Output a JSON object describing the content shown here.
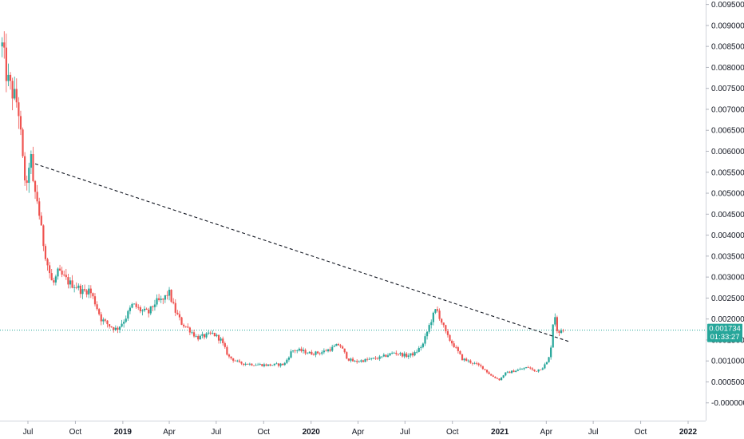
{
  "chart_data": {
    "type": "candlestick",
    "title": "",
    "xlabel": "",
    "ylabel": "",
    "ylim": [
      -0.0001,
      0.00955
    ],
    "y_ticks": [
      "0.009500",
      "0.009000",
      "0.008500",
      "0.008000",
      "0.007500",
      "0.007000",
      "0.006500",
      "0.006000",
      "0.005500",
      "0.005000",
      "0.004500",
      "0.004000",
      "0.003500",
      "0.003000",
      "0.002500",
      "0.002000",
      "0.001500",
      "0.001000",
      "0.000500",
      "-0.000000"
    ],
    "x_ticks": [
      {
        "label": "Jul",
        "date": "2018-07-01",
        "bold": false
      },
      {
        "label": "Oct",
        "date": "2018-10-01",
        "bold": false
      },
      {
        "label": "2019",
        "date": "2019-01-01",
        "bold": true
      },
      {
        "label": "Apr",
        "date": "2019-04-01",
        "bold": false
      },
      {
        "label": "Jul",
        "date": "2019-07-01",
        "bold": false
      },
      {
        "label": "Oct",
        "date": "2019-10-01",
        "bold": false
      },
      {
        "label": "2020",
        "date": "2020-01-01",
        "bold": true
      },
      {
        "label": "Apr",
        "date": "2020-04-01",
        "bold": false
      },
      {
        "label": "Jul",
        "date": "2020-07-01",
        "bold": false
      },
      {
        "label": "Oct",
        "date": "2020-10-01",
        "bold": false
      },
      {
        "label": "2021",
        "date": "2021-01-01",
        "bold": true
      },
      {
        "label": "Apr",
        "date": "2021-04-01",
        "bold": false
      },
      {
        "label": "Jul",
        "date": "2021-07-01",
        "bold": false
      },
      {
        "label": "Oct",
        "date": "2021-10-01",
        "bold": false
      },
      {
        "label": "2022",
        "date": "2022-01-01",
        "bold": true
      }
    ],
    "series": [
      {
        "points": [
          [
            "2018-05-12",
            0.0085
          ],
          [
            "2018-05-22",
            0.0077
          ],
          [
            "2018-06-01",
            0.0074
          ],
          [
            "2018-06-12",
            0.0071
          ],
          [
            "2018-06-22",
            0.0056
          ],
          [
            "2018-06-30",
            0.005
          ],
          [
            "2018-07-05",
            0.0062
          ],
          [
            "2018-07-10",
            0.0052
          ],
          [
            "2018-07-20",
            0.0048
          ],
          [
            "2018-07-28",
            0.004
          ],
          [
            "2018-08-08",
            0.0033
          ],
          [
            "2018-08-18",
            0.0028
          ],
          [
            "2018-08-28",
            0.0031
          ],
          [
            "2018-09-08",
            0.003
          ],
          [
            "2018-09-20",
            0.00285
          ],
          [
            "2018-10-01",
            0.0028
          ],
          [
            "2018-10-15",
            0.00265
          ],
          [
            "2018-10-28",
            0.0027
          ],
          [
            "2018-11-08",
            0.0024
          ],
          [
            "2018-11-20",
            0.002
          ],
          [
            "2018-12-05",
            0.00185
          ],
          [
            "2018-12-20",
            0.00175
          ],
          [
            "2019-01-05",
            0.002
          ],
          [
            "2019-01-20",
            0.00235
          ],
          [
            "2019-02-05",
            0.0022
          ],
          [
            "2019-02-20",
            0.00215
          ],
          [
            "2019-03-05",
            0.0024
          ],
          [
            "2019-03-20",
            0.00245
          ],
          [
            "2019-03-31",
            0.00265
          ],
          [
            "2019-04-12",
            0.0022
          ],
          [
            "2019-04-25",
            0.0019
          ],
          [
            "2019-05-10",
            0.00175
          ],
          [
            "2019-05-25",
            0.00155
          ],
          [
            "2019-06-10",
            0.0016
          ],
          [
            "2019-06-25",
            0.00165
          ],
          [
            "2019-07-10",
            0.0015
          ],
          [
            "2019-07-25",
            0.0011
          ],
          [
            "2019-08-15",
            0.00095
          ],
          [
            "2019-09-10",
            0.00092
          ],
          [
            "2019-10-10",
            0.0009
          ],
          [
            "2019-11-10",
            0.00092
          ],
          [
            "2019-11-25",
            0.00125
          ],
          [
            "2019-12-10",
            0.00125
          ],
          [
            "2019-12-31",
            0.00118
          ],
          [
            "2020-01-20",
            0.0012
          ],
          [
            "2020-02-10",
            0.0013
          ],
          [
            "2020-02-25",
            0.0014
          ],
          [
            "2020-03-12",
            0.00105
          ],
          [
            "2020-03-25",
            0.00098
          ],
          [
            "2020-04-15",
            0.00102
          ],
          [
            "2020-05-15",
            0.00108
          ],
          [
            "2020-06-10",
            0.0012
          ],
          [
            "2020-07-05",
            0.00112
          ],
          [
            "2020-07-20",
            0.00118
          ],
          [
            "2020-08-05",
            0.0014
          ],
          [
            "2020-08-20",
            0.00195
          ],
          [
            "2020-08-31",
            0.00225
          ],
          [
            "2020-09-08",
            0.002
          ],
          [
            "2020-09-20",
            0.0016
          ],
          [
            "2020-10-05",
            0.00135
          ],
          [
            "2020-10-20",
            0.00105
          ],
          [
            "2020-11-10",
            0.00095
          ],
          [
            "2020-11-28",
            0.00085
          ],
          [
            "2020-12-15",
            0.00065
          ],
          [
            "2021-01-01",
            0.00055
          ],
          [
            "2021-01-10",
            0.0007
          ],
          [
            "2021-01-25",
            0.00075
          ],
          [
            "2021-02-10",
            0.0008
          ],
          [
            "2021-02-25",
            0.00085
          ],
          [
            "2021-03-10",
            0.00075
          ],
          [
            "2021-03-25",
            0.00085
          ],
          [
            "2021-04-05",
            0.001
          ],
          [
            "2021-04-12",
            0.0015
          ],
          [
            "2021-04-16",
            0.0023
          ],
          [
            "2021-04-20",
            0.00185
          ],
          [
            "2021-04-25",
            0.0016
          ],
          [
            "2021-05-02",
            0.0018
          ],
          [
            "2021-05-06",
            0.00173
          ]
        ]
      }
    ],
    "trendline": {
      "start": {
        "date": "2018-07-15",
        "value": 0.0057
      },
      "end": {
        "date": "2021-05-18",
        "value": 0.00145
      }
    },
    "last_price": {
      "value": 0.001734,
      "label": "0.001734",
      "countdown": "01:33:27"
    },
    "colors": {
      "up": "#26a69a",
      "down": "#ef5350",
      "trendline": "#131722",
      "price_line": "#26a69a",
      "badge": "#26a69a",
      "axis_text": "#131722"
    },
    "grid": false
  }
}
